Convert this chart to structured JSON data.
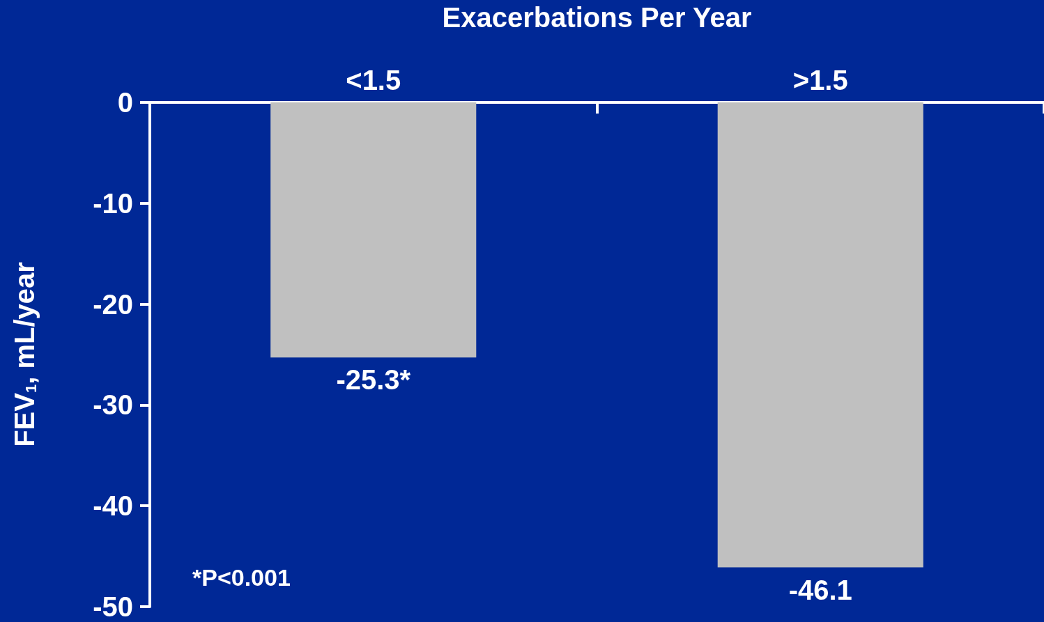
{
  "chart_data": {
    "type": "bar",
    "xlabel": "Exacerbations Per Year",
    "ylabel": "FEV$_{1}$, mL/year",
    "categories": [
      "<1.5",
      ">1.5"
    ],
    "values": [
      -25.3,
      -46.1
    ],
    "color": "#c0c0c0",
    "value_labels": [
      "-25.3*",
      "-46.1"
    ],
    "ylim": [
      -50,
      0
    ],
    "yticks": [
      0,
      -10,
      -20,
      -30,
      -40,
      -50
    ],
    "grid": false,
    "annotations": [
      "*P<0.001"
    ]
  }
}
